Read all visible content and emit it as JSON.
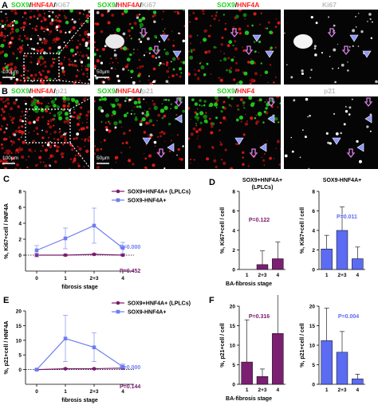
{
  "colors": {
    "purple": "#7a1a6e",
    "blue": "#6f7cf0",
    "bar_purple": "#7b1f73",
    "bar_blue": "#5b6cf2",
    "green": "#22d11f",
    "red": "#ff2222",
    "gray": "#bdbdbd",
    "arrow_violet": "#d983e6"
  },
  "panel_a": {
    "letter": "A",
    "headers": [
      {
        "sox9": "SOX9",
        "hnf": "HNF4A",
        "ki": "Ki67"
      },
      {
        "sox9": "SOX9",
        "hnf": "HNF4A",
        "ki": "Ki67"
      },
      {
        "sox9": "SOX9",
        "hnf": "HNF4A",
        "ki": ""
      },
      {
        "sox9": "",
        "hnf": "",
        "ki": "Ki67"
      }
    ],
    "scale_overview": "100µm",
    "scale_zoom": "50µm"
  },
  "panel_b": {
    "letter": "B",
    "headers": [
      {
        "sox9": "SOX9",
        "hnf": "HNF4A",
        "ki": "p21"
      },
      {
        "sox9": "SOX9",
        "hnf": "HNF4A",
        "ki": "p21"
      },
      {
        "sox9": "SOX9",
        "hnf": "HNF4",
        "ki": ""
      },
      {
        "sox9": "",
        "hnf": "",
        "ki": "p21"
      }
    ],
    "scale_overview": "100µm",
    "scale_zoom": "50µm"
  },
  "chart_data": [
    {
      "panel": "C",
      "type": "line",
      "categories": [
        "0",
        "1",
        "2+3",
        "4"
      ],
      "xlabel": "fibrosis stage",
      "ylabel": "%, Ki67+cell / HNF4A",
      "ylim": [
        -2,
        8
      ],
      "yticks": [
        0,
        2,
        4,
        6,
        8
      ],
      "series": [
        {
          "name": "SOX9+HNF4A+ (LPLCs)",
          "values": [
            0,
            0,
            0.1,
            0
          ],
          "err": [
            0.2,
            0.1,
            0.1,
            0.1
          ],
          "color": "#7a1a6e"
        },
        {
          "name": "SOX9-HNF4A+",
          "values": [
            0.6,
            2.1,
            3.7,
            0.9
          ],
          "err": [
            0.6,
            1.3,
            2.2,
            0.7
          ],
          "color": "#6f7cf0"
        }
      ],
      "annotations": [
        {
          "text": "P=0.000",
          "color": "#6f7cf0"
        },
        {
          "text": "P=0.452",
          "color": "#7a1a6e"
        }
      ],
      "legend": "top-right"
    },
    {
      "panel": "D",
      "type": "bar",
      "title": "SOX9+HNF4A+ (LPLCs)",
      "categories": [
        "1",
        "2+3",
        "4"
      ],
      "values": [
        0,
        0.5,
        1.1
      ],
      "err": [
        0,
        1.4,
        1.7
      ],
      "xlabel": "BA-fibrosis stage",
      "ylabel": "%, Ki67+cell / cell",
      "ylim": [
        0,
        8
      ],
      "yticks": [
        0,
        2,
        4,
        6,
        8
      ],
      "annotation": {
        "text": "P=0.122",
        "color": "#7a1a6e"
      }
    },
    {
      "panel": "D",
      "type": "bar",
      "title": "SOX9-HNF4A+",
      "categories": [
        "1",
        "2+3",
        "4"
      ],
      "values": [
        2.1,
        4.0,
        1.1
      ],
      "err": [
        1.4,
        2.4,
        1.2
      ],
      "xlabel": "",
      "ylabel": "%, Ki67+cell / cell",
      "ylim": [
        0,
        8
      ],
      "yticks": [
        0,
        2,
        4,
        6,
        8
      ],
      "annotation": {
        "text": "P=0.011",
        "color": "#5b6cf2"
      }
    },
    {
      "panel": "E",
      "type": "line",
      "categories": [
        "0",
        "1",
        "2+3",
        "4"
      ],
      "xlabel": "fibrosis stage",
      "ylabel": "%, p21+cell / HNF4A",
      "ylim": [
        -5,
        20
      ],
      "yticks": [
        0,
        5,
        10,
        15,
        20
      ],
      "series": [
        {
          "name": "SOX9+HNF4A+ (LPLCs)",
          "values": [
            0,
            0.3,
            0.3,
            0.5
          ],
          "err": [
            0.2,
            0.2,
            0.2,
            0.2
          ],
          "color": "#7a1a6e"
        },
        {
          "name": "SOX9-HNF4A+",
          "values": [
            0,
            10.6,
            7.6,
            1.0
          ],
          "err": [
            0.2,
            7.9,
            4.9,
            0.9
          ],
          "color": "#6f7cf0"
        }
      ],
      "annotations": [
        {
          "text": "P=0.000",
          "color": "#6f7cf0"
        },
        {
          "text": "P=0.144",
          "color": "#7a1a6e"
        }
      ],
      "legend": "top-right"
    },
    {
      "panel": "F",
      "type": "bar",
      "categories": [
        "1",
        "2+3",
        "4"
      ],
      "values": [
        5.7,
        2.0,
        13.0
      ],
      "err": [
        10.8,
        1.9,
        14.5
      ],
      "xlabel": "BA-fibrosis stage",
      "ylabel": "%, p21+cell / cell",
      "ylim": [
        0,
        20
      ],
      "yticks": [
        0,
        5,
        10,
        15,
        20
      ],
      "annotation": {
        "text": "P=0.316",
        "color": "#7a1a6e"
      }
    },
    {
      "panel": "F",
      "type": "bar",
      "categories": [
        "1",
        "2+3",
        "4"
      ],
      "values": [
        11.2,
        8.2,
        1.4
      ],
      "err": [
        8.3,
        5.3,
        1.2
      ],
      "xlabel": "",
      "ylabel": "%, p21+cell / cell",
      "ylim": [
        0,
        20
      ],
      "yticks": [
        0,
        5,
        10,
        15,
        20
      ],
      "annotation": {
        "text": "P=0.004",
        "color": "#5b6cf2"
      }
    }
  ],
  "panel_letters": {
    "c": "C",
    "d": "D",
    "e": "E",
    "f": "F"
  }
}
